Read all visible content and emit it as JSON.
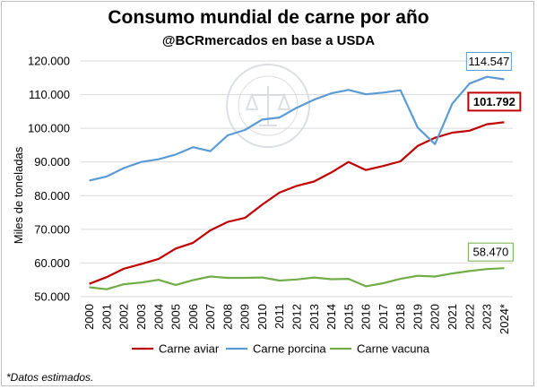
{
  "chart_data": {
    "type": "line",
    "title": "Consumo mundial de carne por año",
    "subtitle": "@BCRmercados en base a USDA",
    "ylabel": "Miles de toneladas",
    "xlabel": "",
    "ylim": [
      50000,
      120000
    ],
    "yticks": [
      "50.000",
      "60.000",
      "70.000",
      "80.000",
      "90.000",
      "100.000",
      "110.000",
      "120.000"
    ],
    "grid": true,
    "legend_position": "bottom",
    "categories": [
      "2000",
      "2001",
      "2002",
      "2003",
      "2004",
      "2005",
      "2006",
      "2007",
      "2008",
      "2009",
      "2010",
      "2011",
      "2012",
      "2013",
      "2014",
      "2015",
      "2016",
      "2017",
      "2018",
      "2019",
      "2020",
      "2021",
      "2022",
      "2023",
      "2024*"
    ],
    "series": [
      {
        "name": "Carne aviar",
        "color": "#c00000",
        "values": [
          53800,
          55800,
          58300,
          59700,
          61200,
          64300,
          66000,
          69700,
          72200,
          73400,
          77300,
          80900,
          82900,
          84200,
          86900,
          90000,
          87600,
          88800,
          90200,
          94800,
          97200,
          98700,
          99300,
          101200,
          101792
        ],
        "end_label": "101.792"
      },
      {
        "name": "Carne porcina",
        "color": "#5b9bd5",
        "values": [
          84500,
          85700,
          88200,
          90000,
          90800,
          92200,
          94400,
          93200,
          97900,
          99500,
          102600,
          103200,
          106100,
          108500,
          110400,
          111400,
          110100,
          110600,
          111300,
          100200,
          95300,
          107300,
          113300,
          115300,
          114547
        ],
        "end_label": "114.547"
      },
      {
        "name": "Carne vacuna",
        "color": "#70ad47",
        "values": [
          52800,
          52200,
          53700,
          54200,
          55000,
          53500,
          54900,
          56000,
          55600,
          55600,
          55700,
          54800,
          55100,
          55700,
          55200,
          55300,
          53100,
          54000,
          55300,
          56200,
          56000,
          56900,
          57600,
          58200,
          58470
        ],
        "end_label": "58.470"
      }
    ]
  },
  "footnote": "*Datos estimados.",
  "watermark_text": "BOLSA DE COMERCIO DE ROSARIO"
}
